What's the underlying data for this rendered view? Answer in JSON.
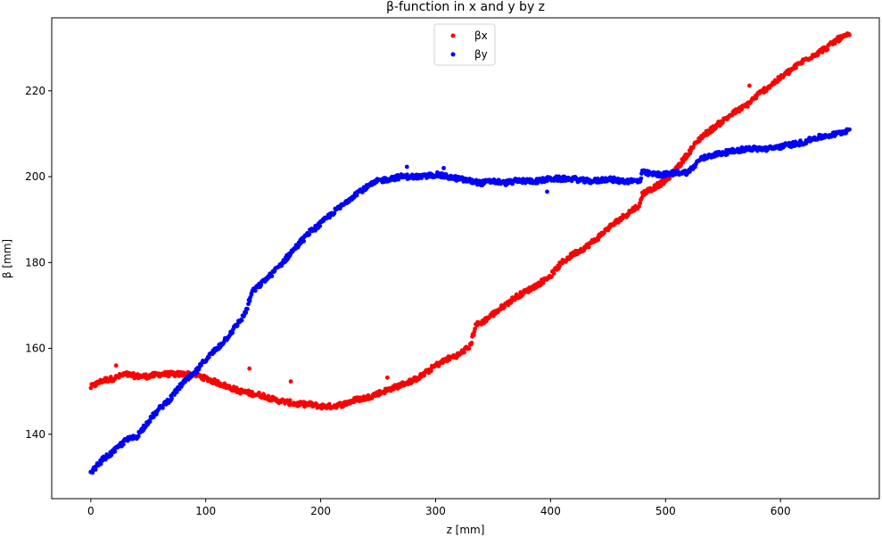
{
  "chart_data": {
    "type": "scatter",
    "title": "β-function in x and y by z",
    "xlabel": "z [mm]",
    "ylabel": "β [mm]",
    "xlim": [
      -34,
      686
    ],
    "ylim": [
      125,
      237
    ],
    "xticks": [
      0,
      100,
      200,
      300,
      400,
      500,
      600
    ],
    "yticks": [
      140,
      160,
      180,
      200,
      220
    ],
    "grid": false,
    "legend": {
      "placement": "top-center"
    },
    "series": [
      {
        "name": "βx",
        "color": "#ff0000",
        "points": [
          [
            0,
            151.0
          ],
          [
            10,
            152.5
          ],
          [
            20,
            153.0
          ],
          [
            30,
            154.0
          ],
          [
            40,
            153.5
          ],
          [
            50,
            153.5
          ],
          [
            60,
            154.0
          ],
          [
            70,
            154.0
          ],
          [
            80,
            154.0
          ],
          [
            90,
            154.0
          ],
          [
            100,
            153.0
          ],
          [
            110,
            152.0
          ],
          [
            120,
            151.0
          ],
          [
            130,
            150.0
          ],
          [
            140,
            149.5
          ],
          [
            150,
            149.0
          ],
          [
            160,
            148.0
          ],
          [
            170,
            147.5
          ],
          [
            180,
            147.0
          ],
          [
            190,
            147.0
          ],
          [
            200,
            146.5
          ],
          [
            210,
            146.5
          ],
          [
            220,
            147.0
          ],
          [
            230,
            148.0
          ],
          [
            240,
            148.5
          ],
          [
            250,
            149.5
          ],
          [
            260,
            150.5
          ],
          [
            270,
            151.5
          ],
          [
            280,
            152.5
          ],
          [
            290,
            154.0
          ],
          [
            300,
            156.0
          ],
          [
            310,
            157.5
          ],
          [
            320,
            158.5
          ],
          [
            330,
            160.5
          ],
          [
            335,
            165.5
          ],
          [
            340,
            166.0
          ],
          [
            350,
            168.0
          ],
          [
            360,
            170.0
          ],
          [
            370,
            172.0
          ],
          [
            380,
            173.5
          ],
          [
            390,
            175.0
          ],
          [
            400,
            177.0
          ],
          [
            410,
            180.0
          ],
          [
            420,
            182.0
          ],
          [
            430,
            183.5
          ],
          [
            440,
            185.5
          ],
          [
            450,
            188.0
          ],
          [
            460,
            190.0
          ],
          [
            470,
            192.0
          ],
          [
            478,
            193.5
          ],
          [
            480,
            196.0
          ],
          [
            490,
            197.5
          ],
          [
            500,
            199.0
          ],
          [
            510,
            202.0
          ],
          [
            520,
            205.5
          ],
          [
            530,
            209.0
          ],
          [
            540,
            211.0
          ],
          [
            550,
            213.0
          ],
          [
            560,
            215.0
          ],
          [
            570,
            216.5
          ],
          [
            580,
            219.0
          ],
          [
            590,
            221.0
          ],
          [
            600,
            223.0
          ],
          [
            610,
            225.0
          ],
          [
            620,
            227.0
          ],
          [
            630,
            228.5
          ],
          [
            640,
            230.0
          ],
          [
            650,
            232.0
          ],
          [
            660,
            233.0
          ]
        ],
        "outliers": [
          [
            22,
            156.0
          ],
          [
            138,
            155.3
          ],
          [
            174,
            152.3
          ],
          [
            258,
            153.2
          ],
          [
            573,
            221.2
          ]
        ]
      },
      {
        "name": "βy",
        "color": "#0000ff",
        "points": [
          [
            0,
            131.0
          ],
          [
            10,
            134.0
          ],
          [
            20,
            136.0
          ],
          [
            30,
            138.5
          ],
          [
            40,
            139.5
          ],
          [
            50,
            143.0
          ],
          [
            60,
            146.0
          ],
          [
            70,
            148.5
          ],
          [
            80,
            152.0
          ],
          [
            90,
            154.0
          ],
          [
            100,
            157.5
          ],
          [
            110,
            160.0
          ],
          [
            120,
            163.0
          ],
          [
            130,
            166.5
          ],
          [
            135,
            168.5
          ],
          [
            140,
            173.0
          ],
          [
            150,
            175.5
          ],
          [
            160,
            178.0
          ],
          [
            170,
            181.0
          ],
          [
            180,
            184.0
          ],
          [
            190,
            187.0
          ],
          [
            200,
            189.0
          ],
          [
            210,
            191.5
          ],
          [
            220,
            193.5
          ],
          [
            230,
            196.0
          ],
          [
            240,
            197.5
          ],
          [
            250,
            199.0
          ],
          [
            260,
            199.5
          ],
          [
            270,
            200.0
          ],
          [
            280,
            200.0
          ],
          [
            290,
            200.0
          ],
          [
            300,
            200.5
          ],
          [
            310,
            200.0
          ],
          [
            320,
            199.5
          ],
          [
            330,
            199.0
          ],
          [
            340,
            198.5
          ],
          [
            350,
            199.0
          ],
          [
            360,
            198.5
          ],
          [
            370,
            199.0
          ],
          [
            380,
            199.0
          ],
          [
            390,
            199.0
          ],
          [
            400,
            199.5
          ],
          [
            410,
            199.5
          ],
          [
            420,
            199.5
          ],
          [
            430,
            199.0
          ],
          [
            440,
            199.0
          ],
          [
            450,
            199.5
          ],
          [
            460,
            199.0
          ],
          [
            470,
            199.0
          ],
          [
            478,
            199.0
          ],
          [
            480,
            201.0
          ],
          [
            490,
            200.5
          ],
          [
            500,
            200.5
          ],
          [
            510,
            201.0
          ],
          [
            520,
            201.0
          ],
          [
            530,
            204.0
          ],
          [
            540,
            205.0
          ],
          [
            550,
            205.5
          ],
          [
            560,
            206.0
          ],
          [
            570,
            206.5
          ],
          [
            580,
            206.5
          ],
          [
            590,
            206.5
          ],
          [
            600,
            207.0
          ],
          [
            610,
            207.5
          ],
          [
            620,
            208.0
          ],
          [
            630,
            209.0
          ],
          [
            640,
            209.5
          ],
          [
            650,
            210.0
          ],
          [
            660,
            211.0
          ]
        ],
        "outliers": [
          [
            275,
            202.3
          ],
          [
            307,
            202.0
          ],
          [
            397,
            196.5
          ]
        ]
      }
    ]
  }
}
